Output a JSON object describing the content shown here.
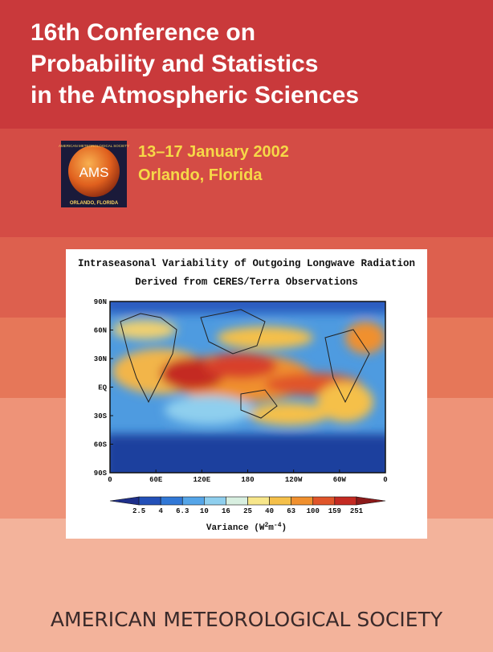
{
  "header": {
    "title_lines": [
      "16th Conference on",
      "Probability and Statistics",
      "in the Atmospheric Sciences"
    ]
  },
  "logo": {
    "society": "AMERICAN METEOROLOGICAL SOCIETY",
    "acronym": "AMS",
    "place": "ORLANDO, FLORIDA"
  },
  "event": {
    "dates": "13–17 January 2002",
    "location": "Orlando, Florida"
  },
  "figure": {
    "title_lines": [
      "Intraseasonal Variability of Outgoing Longwave Radiation",
      "Derived from CERES/Terra Observations"
    ],
    "lat_labels": [
      "90N",
      "60N",
      "30N",
      "EQ",
      "30S",
      "60S",
      "90S"
    ],
    "lon_labels": [
      "0",
      "60E",
      "120E",
      "180",
      "120W",
      "60W",
      "0"
    ],
    "colorbar_labels": [
      "2.5",
      "4",
      "6.3",
      "10",
      "16",
      "25",
      "40",
      "63",
      "100",
      "159",
      "251"
    ],
    "colorbar_title": {
      "text": "Variance (W",
      "sup1": "2",
      "mid": "m",
      "sup2": "-4",
      "end": ")"
    }
  },
  "footer": {
    "publisher": "AMERICAN METEOROLOGICAL SOCIETY"
  }
}
